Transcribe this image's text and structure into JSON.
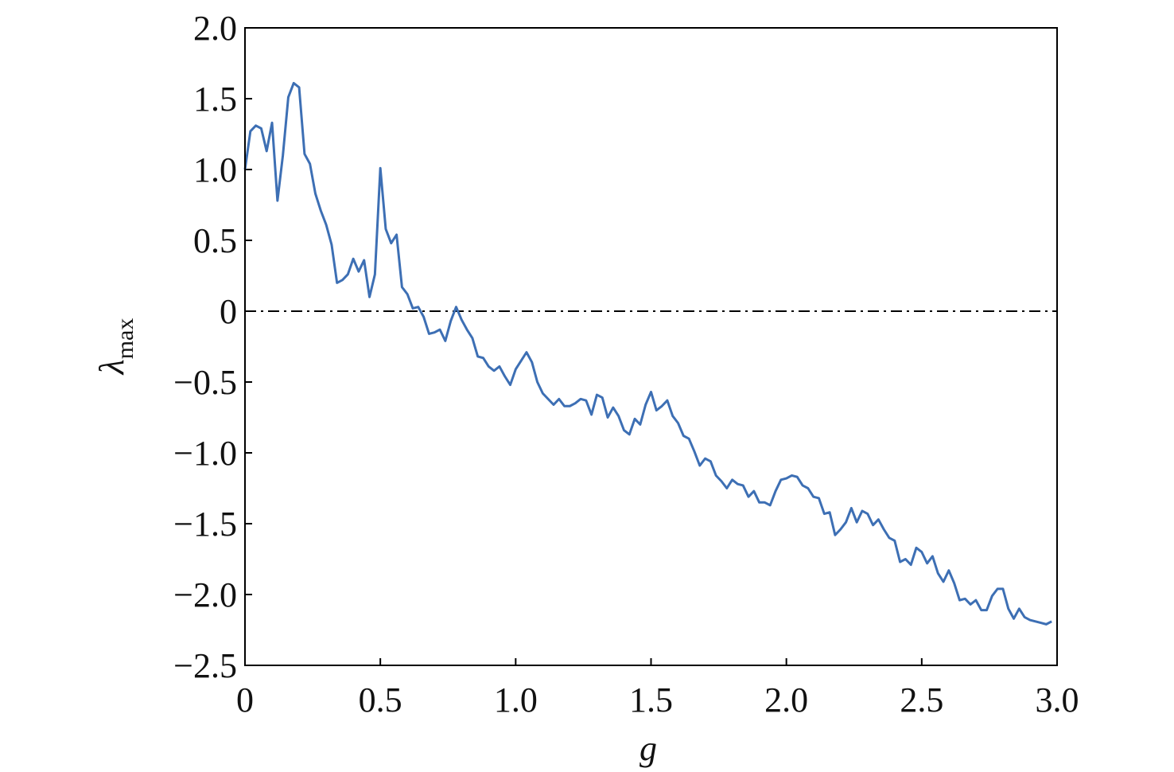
{
  "chart_data": {
    "type": "line",
    "xlabel": "g",
    "ylabel": "λ",
    "ylabel_subscript": "max",
    "xlim": [
      0,
      3
    ],
    "ylim": [
      -2.5,
      2
    ],
    "xticks": [
      0,
      0.5,
      {
        "value": 1,
        "label": "1.0"
      },
      1.5,
      {
        "value": 2,
        "label": "2.0"
      },
      2.5,
      {
        "value": 3,
        "label": "3.0"
      }
    ],
    "yticks": [
      {
        "value": 2,
        "label": "2.0"
      },
      1.5,
      {
        "value": 1,
        "label": "1.0"
      },
      0.5,
      0,
      {
        "value": -0.5,
        "label": "−0.5"
      },
      {
        "value": -1,
        "label": "−1.0"
      },
      {
        "value": -1.5,
        "label": "−1.5"
      },
      {
        "value": -2,
        "label": "−2.0"
      },
      {
        "value": -2.5,
        "label": "−2.5"
      }
    ],
    "reference_line": {
      "y": 0,
      "style": "dashdot",
      "color": "#000000"
    },
    "x": [
      0,
      0.02,
      0.04,
      0.06,
      0.08,
      0.1,
      0.12,
      0.14,
      0.16,
      0.18,
      0.2,
      0.22,
      0.24,
      0.26,
      0.28,
      0.3,
      0.32,
      0.34,
      0.36,
      0.38,
      0.4,
      0.42,
      0.44,
      0.46,
      0.48,
      0.5,
      0.52,
      0.54,
      0.56,
      0.58,
      0.6,
      0.62,
      0.64,
      0.66,
      0.68,
      0.7,
      0.72,
      0.74,
      0.76,
      0.78,
      0.8,
      0.82,
      0.84,
      0.86,
      0.88,
      0.9,
      0.92,
      0.94,
      0.96,
      0.98,
      1,
      1.02,
      1.04,
      1.06,
      1.08,
      1.1,
      1.12,
      1.14,
      1.16,
      1.18,
      1.2,
      1.22,
      1.24,
      1.26,
      1.28,
      1.3,
      1.32,
      1.34,
      1.36,
      1.38,
      1.4,
      1.42,
      1.44,
      1.46,
      1.48,
      1.5,
      1.52,
      1.54,
      1.56,
      1.58,
      1.6,
      1.62,
      1.64,
      1.66,
      1.68,
      1.7,
      1.72,
      1.74,
      1.76,
      1.78,
      1.8,
      1.82,
      1.84,
      1.86,
      1.88,
      1.9,
      1.92,
      1.94,
      1.96,
      1.98,
      2,
      2.02,
      2.04,
      2.06,
      2.08,
      2.1,
      2.12,
      2.14,
      2.16,
      2.18,
      2.2,
      2.22,
      2.24,
      2.26,
      2.28,
      2.3,
      2.32,
      2.34,
      2.36,
      2.38,
      2.4,
      2.42,
      2.44,
      2.46,
      2.48,
      2.5,
      2.52,
      2.54,
      2.56,
      2.58,
      2.6,
      2.62,
      2.64,
      2.66,
      2.68,
      2.7,
      2.72,
      2.74,
      2.76,
      2.78,
      2.8,
      2.82,
      2.84,
      2.86,
      2.88,
      2.9,
      2.92,
      2.94,
      2.96,
      2.98
    ],
    "series": [
      {
        "color": "#3d6fb4",
        "values": [
          1.0,
          1.27,
          1.31,
          1.29,
          1.13,
          1.33,
          0.78,
          1.1,
          1.51,
          1.61,
          1.58,
          1.11,
          1.04,
          0.83,
          0.71,
          0.61,
          0.47,
          0.2,
          0.22,
          0.26,
          0.37,
          0.28,
          0.36,
          0.1,
          0.26,
          1.01,
          0.58,
          0.48,
          0.54,
          0.17,
          0.12,
          0.02,
          0.03,
          -0.04,
          -0.16,
          -0.15,
          -0.13,
          -0.21,
          -0.07,
          0.03,
          -0.06,
          -0.13,
          -0.19,
          -0.32,
          -0.33,
          -0.39,
          -0.42,
          -0.39,
          -0.46,
          -0.52,
          -0.41,
          -0.35,
          -0.29,
          -0.36,
          -0.5,
          -0.58,
          -0.62,
          -0.66,
          -0.62,
          -0.67,
          -0.67,
          -0.65,
          -0.62,
          -0.63,
          -0.73,
          -0.59,
          -0.61,
          -0.75,
          -0.68,
          -0.74,
          -0.84,
          -0.87,
          -0.76,
          -0.8,
          -0.66,
          -0.57,
          -0.7,
          -0.67,
          -0.63,
          -0.74,
          -0.79,
          -0.88,
          -0.9,
          -0.99,
          -1.09,
          -1.04,
          -1.06,
          -1.16,
          -1.2,
          -1.25,
          -1.19,
          -1.22,
          -1.23,
          -1.31,
          -1.27,
          -1.35,
          -1.35,
          -1.37,
          -1.27,
          -1.19,
          -1.18,
          -1.16,
          -1.17,
          -1.23,
          -1.25,
          -1.31,
          -1.32,
          -1.43,
          -1.42,
          -1.58,
          -1.54,
          -1.49,
          -1.39,
          -1.49,
          -1.41,
          -1.43,
          -1.51,
          -1.47,
          -1.54,
          -1.6,
          -1.62,
          -1.77,
          -1.75,
          -1.79,
          -1.67,
          -1.7,
          -1.78,
          -1.73,
          -1.85,
          -1.91,
          -1.83,
          -1.92,
          -2.04,
          -2.03,
          -2.07,
          -2.04,
          -2.11,
          -2.11,
          -2.01,
          -1.96,
          -1.96,
          -2.1,
          -2.17,
          -2.1,
          -2.16,
          -2.18,
          -2.19,
          -2.2,
          -2.21,
          -2.19
        ]
      }
    ]
  }
}
